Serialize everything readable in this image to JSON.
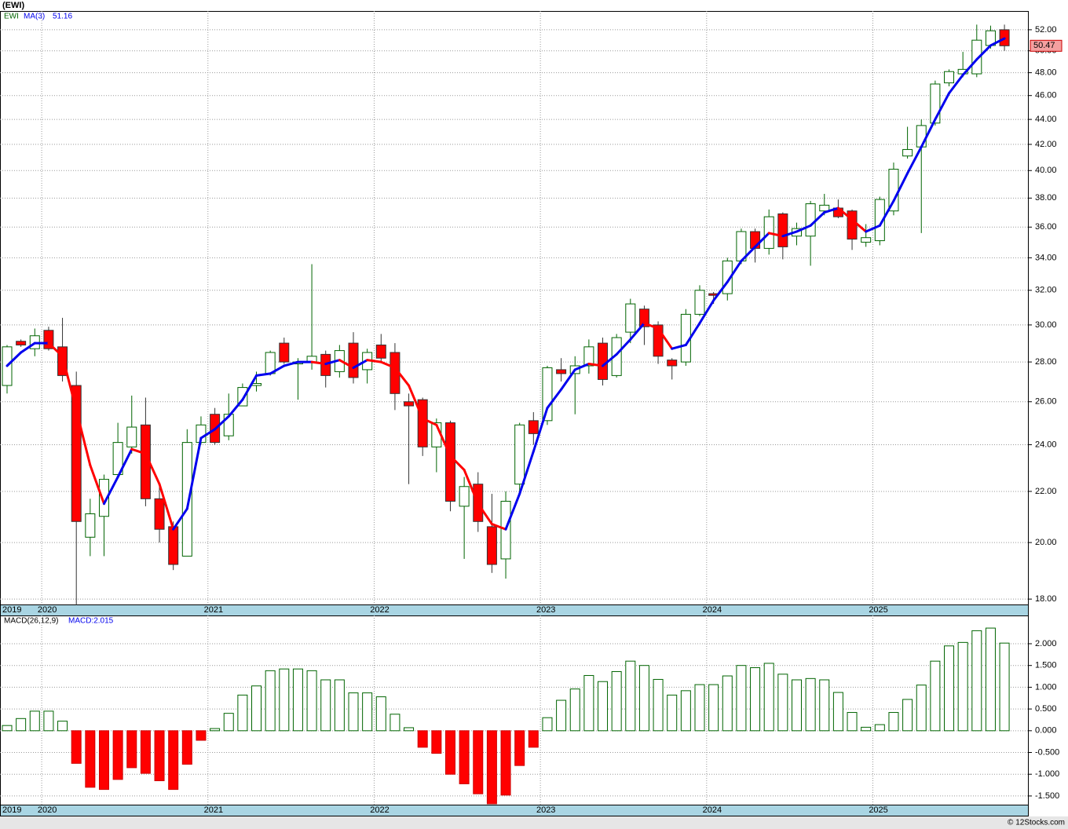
{
  "chart_data": [
    {
      "type": "candlestick",
      "title": "(EWI)",
      "categories": [
        "2019",
        null,
        null,
        "2020",
        null,
        null,
        null,
        null,
        null,
        null,
        null,
        null,
        null,
        null,
        null,
        "2021",
        null,
        null,
        null,
        null,
        null,
        null,
        null,
        null,
        null,
        null,
        null,
        "2022",
        null,
        null,
        null,
        null,
        null,
        null,
        null,
        null,
        null,
        null,
        null,
        "2023",
        null,
        null,
        null,
        null,
        null,
        null,
        null,
        null,
        null,
        null,
        null,
        "2024",
        null,
        null,
        null,
        null,
        null,
        null,
        null,
        null,
        null,
        null,
        null,
        "2025",
        null,
        null,
        null,
        null,
        null,
        null,
        null,
        null,
        null
      ],
      "series": [
        {
          "name": "EWI",
          "up_color": "#ffffff",
          "down_color": "#ff0000",
          "outline_color": "#006400",
          "open": [
            26.8,
            29.1,
            28.7,
            29.7,
            28.8,
            26.8,
            20.2,
            21.0,
            22.7,
            23.9,
            24.9,
            21.7,
            20.6,
            19.5,
            24.1,
            25.4,
            24.4,
            25.8,
            26.8,
            27.4,
            29.0,
            27.9,
            28.0,
            28.4,
            27.5,
            29.0,
            27.6,
            28.9,
            28.5,
            26.0,
            26.1,
            23.9,
            25.0,
            21.4,
            22.3,
            20.6,
            19.4,
            22.3,
            25.1,
            25.1,
            27.6,
            27.4,
            27.8,
            29.0,
            27.3,
            29.6,
            30.9,
            30.0,
            28.1,
            28.0,
            30.6,
            31.8,
            31.8,
            33.8,
            35.7,
            34.6,
            36.9,
            35.4,
            35.4,
            37.1,
            37.3,
            37.1,
            35.0,
            35.1,
            37.1,
            41.1,
            41.8,
            43.7,
            47.1,
            47.9,
            47.9,
            50.5,
            52.0
          ],
          "high": [
            28.9,
            29.2,
            29.8,
            29.9,
            30.4,
            27.5,
            21.7,
            22.7,
            25.0,
            26.3,
            26.2,
            22.3,
            20.8,
            24.7,
            25.3,
            25.7,
            26.4,
            26.9,
            27.5,
            28.6,
            29.3,
            28.2,
            33.6,
            28.6,
            28.9,
            29.6,
            28.7,
            29.5,
            29.0,
            26.4,
            26.2,
            25.2,
            25.1,
            22.6,
            22.8,
            21.9,
            22.0,
            25.0,
            25.5,
            27.8,
            28.2,
            28.3,
            29.2,
            29.3,
            29.5,
            31.5,
            31.1,
            30.2,
            28.2,
            30.9,
            32.3,
            31.9,
            34.0,
            35.9,
            35.9,
            37.2,
            37.0,
            36.3,
            37.8,
            38.3,
            37.9,
            37.2,
            36.2,
            38.1,
            40.6,
            43.4,
            44.0,
            47.3,
            48.3,
            49.9,
            52.5,
            52.4,
            52.5
          ],
          "low": [
            26.4,
            28.8,
            28.3,
            28.6,
            27.0,
            17.8,
            19.5,
            19.5,
            22.6,
            23.6,
            21.4,
            20.0,
            19.0,
            19.5,
            24.0,
            24.0,
            24.2,
            25.8,
            26.5,
            27.3,
            27.9,
            26.1,
            27.6,
            26.7,
            27.2,
            26.9,
            26.9,
            28.0,
            25.6,
            22.3,
            23.5,
            22.8,
            21.2,
            19.4,
            20.4,
            18.9,
            18.7,
            22.0,
            24.0,
            24.9,
            27.0,
            25.4,
            27.4,
            26.8,
            27.2,
            29.0,
            28.9,
            27.9,
            27.1,
            27.8,
            30.5,
            31.2,
            31.4,
            33.6,
            33.7,
            34.2,
            33.9,
            34.8,
            33.5,
            36.8,
            36.6,
            34.5,
            34.7,
            34.8,
            36.8,
            40.9,
            35.6,
            43.5,
            46.8,
            47.6,
            47.6,
            50.2,
            50.0
          ],
          "close": [
            28.8,
            28.9,
            29.4,
            28.7,
            27.3,
            20.8,
            21.1,
            22.5,
            24.1,
            24.8,
            21.7,
            20.5,
            19.2,
            24.1,
            24.9,
            24.1,
            25.4,
            26.7,
            26.9,
            28.5,
            28.0,
            28.0,
            28.3,
            27.3,
            28.6,
            27.2,
            28.5,
            28.2,
            26.4,
            25.8,
            23.9,
            25.0,
            21.6,
            22.2,
            20.8,
            19.2,
            21.6,
            24.9,
            24.5,
            27.7,
            27.4,
            27.8,
            28.8,
            27.1,
            29.3,
            31.2,
            29.9,
            28.3,
            27.8,
            30.6,
            32.0,
            31.7,
            33.8,
            35.7,
            34.6,
            36.7,
            34.7,
            35.9,
            37.6,
            37.5,
            36.7,
            35.2,
            35.3,
            37.9,
            40.1,
            41.6,
            43.5,
            47.0,
            48.1,
            48.3,
            51.0,
            51.9,
            50.47
          ]
        },
        {
          "name": "MA(3)",
          "color": "#0000ee",
          "down_color": "#ff0000",
          "values": [
            27.8,
            28.5,
            29.0,
            29.0,
            28.3,
            25.6,
            23.1,
            21.5,
            22.6,
            23.8,
            23.6,
            22.3,
            20.5,
            21.3,
            24.3,
            24.7,
            25.3,
            26.1,
            27.3,
            27.4,
            27.8,
            28.0,
            28.0,
            27.9,
            28.1,
            27.7,
            28.1,
            28.0,
            27.7,
            26.8,
            25.2,
            24.9,
            23.5,
            22.9,
            21.5,
            20.7,
            20.5,
            21.9,
            23.7,
            25.7,
            26.6,
            27.6,
            27.9,
            27.8,
            28.4,
            29.2,
            30.1,
            29.8,
            28.7,
            28.9,
            30.1,
            31.4,
            32.5,
            33.8,
            34.7,
            35.6,
            35.4,
            35.7,
            36.1,
            37.0,
            37.3,
            36.5,
            35.7,
            36.1,
            37.8,
            39.8,
            41.8,
            44.0,
            46.2,
            47.8,
            49.2,
            50.5,
            51.16
          ]
        }
      ],
      "log_scale": true,
      "grid": true,
      "ylim": [
        17.82,
        53.85
      ],
      "yticks": [
        {
          "value": 18,
          "label": "18.00"
        },
        {
          "value": 20,
          "label": "20.00"
        },
        {
          "value": 22,
          "label": "22.00"
        },
        {
          "value": 24,
          "label": "24.00"
        },
        {
          "value": 26,
          "label": "26.00"
        },
        {
          "value": 28,
          "label": "28.00"
        },
        {
          "value": 30,
          "label": "30.00"
        },
        {
          "value": 32,
          "label": "32.00"
        },
        {
          "value": 34,
          "label": "34.00"
        },
        {
          "value": 36,
          "label": "36.00"
        },
        {
          "value": 38,
          "label": "38.00"
        },
        {
          "value": 40,
          "label": "40.00"
        },
        {
          "value": 42,
          "label": "42.00"
        },
        {
          "value": 44,
          "label": "44.00"
        },
        {
          "value": 46,
          "label": "46.00"
        },
        {
          "value": 48,
          "label": "48.00"
        },
        {
          "value": 50,
          "label": "50.00"
        },
        {
          "value": 52,
          "label": "52.00"
        }
      ]
    },
    {
      "type": "bar",
      "title": "MACD(26,12,9)",
      "legend_value": "MACD:2.015",
      "series": [
        {
          "name": "MACD",
          "up_color": "#ffffff",
          "down_color": "#ff0000",
          "outline_color": "#006400",
          "values": [
            0.12,
            0.28,
            0.45,
            0.45,
            0.22,
            -0.75,
            -1.3,
            -1.35,
            -1.12,
            -0.85,
            -0.98,
            -1.15,
            -1.35,
            -0.77,
            -0.22,
            0.05,
            0.4,
            0.82,
            1.03,
            1.38,
            1.42,
            1.42,
            1.38,
            1.17,
            1.17,
            0.87,
            0.87,
            0.78,
            0.38,
            0.07,
            -0.38,
            -0.52,
            -1.0,
            -1.22,
            -1.45,
            -1.68,
            -1.48,
            -0.8,
            -0.38,
            0.3,
            0.7,
            0.96,
            1.27,
            1.13,
            1.36,
            1.6,
            1.5,
            1.18,
            0.82,
            0.92,
            1.06,
            1.06,
            1.26,
            1.5,
            1.45,
            1.55,
            1.3,
            1.17,
            1.2,
            1.17,
            0.88,
            0.42,
            0.08,
            0.14,
            0.42,
            0.72,
            1.05,
            1.6,
            1.95,
            2.03,
            2.3,
            2.36,
            2.015
          ]
        }
      ],
      "grid": true,
      "ylim": [
        -1.7,
        2.65
      ],
      "yticks": [
        {
          "value": 2,
          "label": "2.000"
        },
        {
          "value": 1.5,
          "label": "1.500"
        },
        {
          "value": 1,
          "label": "1.000"
        },
        {
          "value": 0.5,
          "label": "0.500"
        },
        {
          "value": 0,
          "label": "0.000"
        },
        {
          "value": -0.5,
          "label": "-0.500"
        },
        {
          "value": -1,
          "label": "-1.000"
        },
        {
          "value": -1.5,
          "label": "-1.500"
        }
      ]
    }
  ],
  "footer": "© 12Stocks.com"
}
